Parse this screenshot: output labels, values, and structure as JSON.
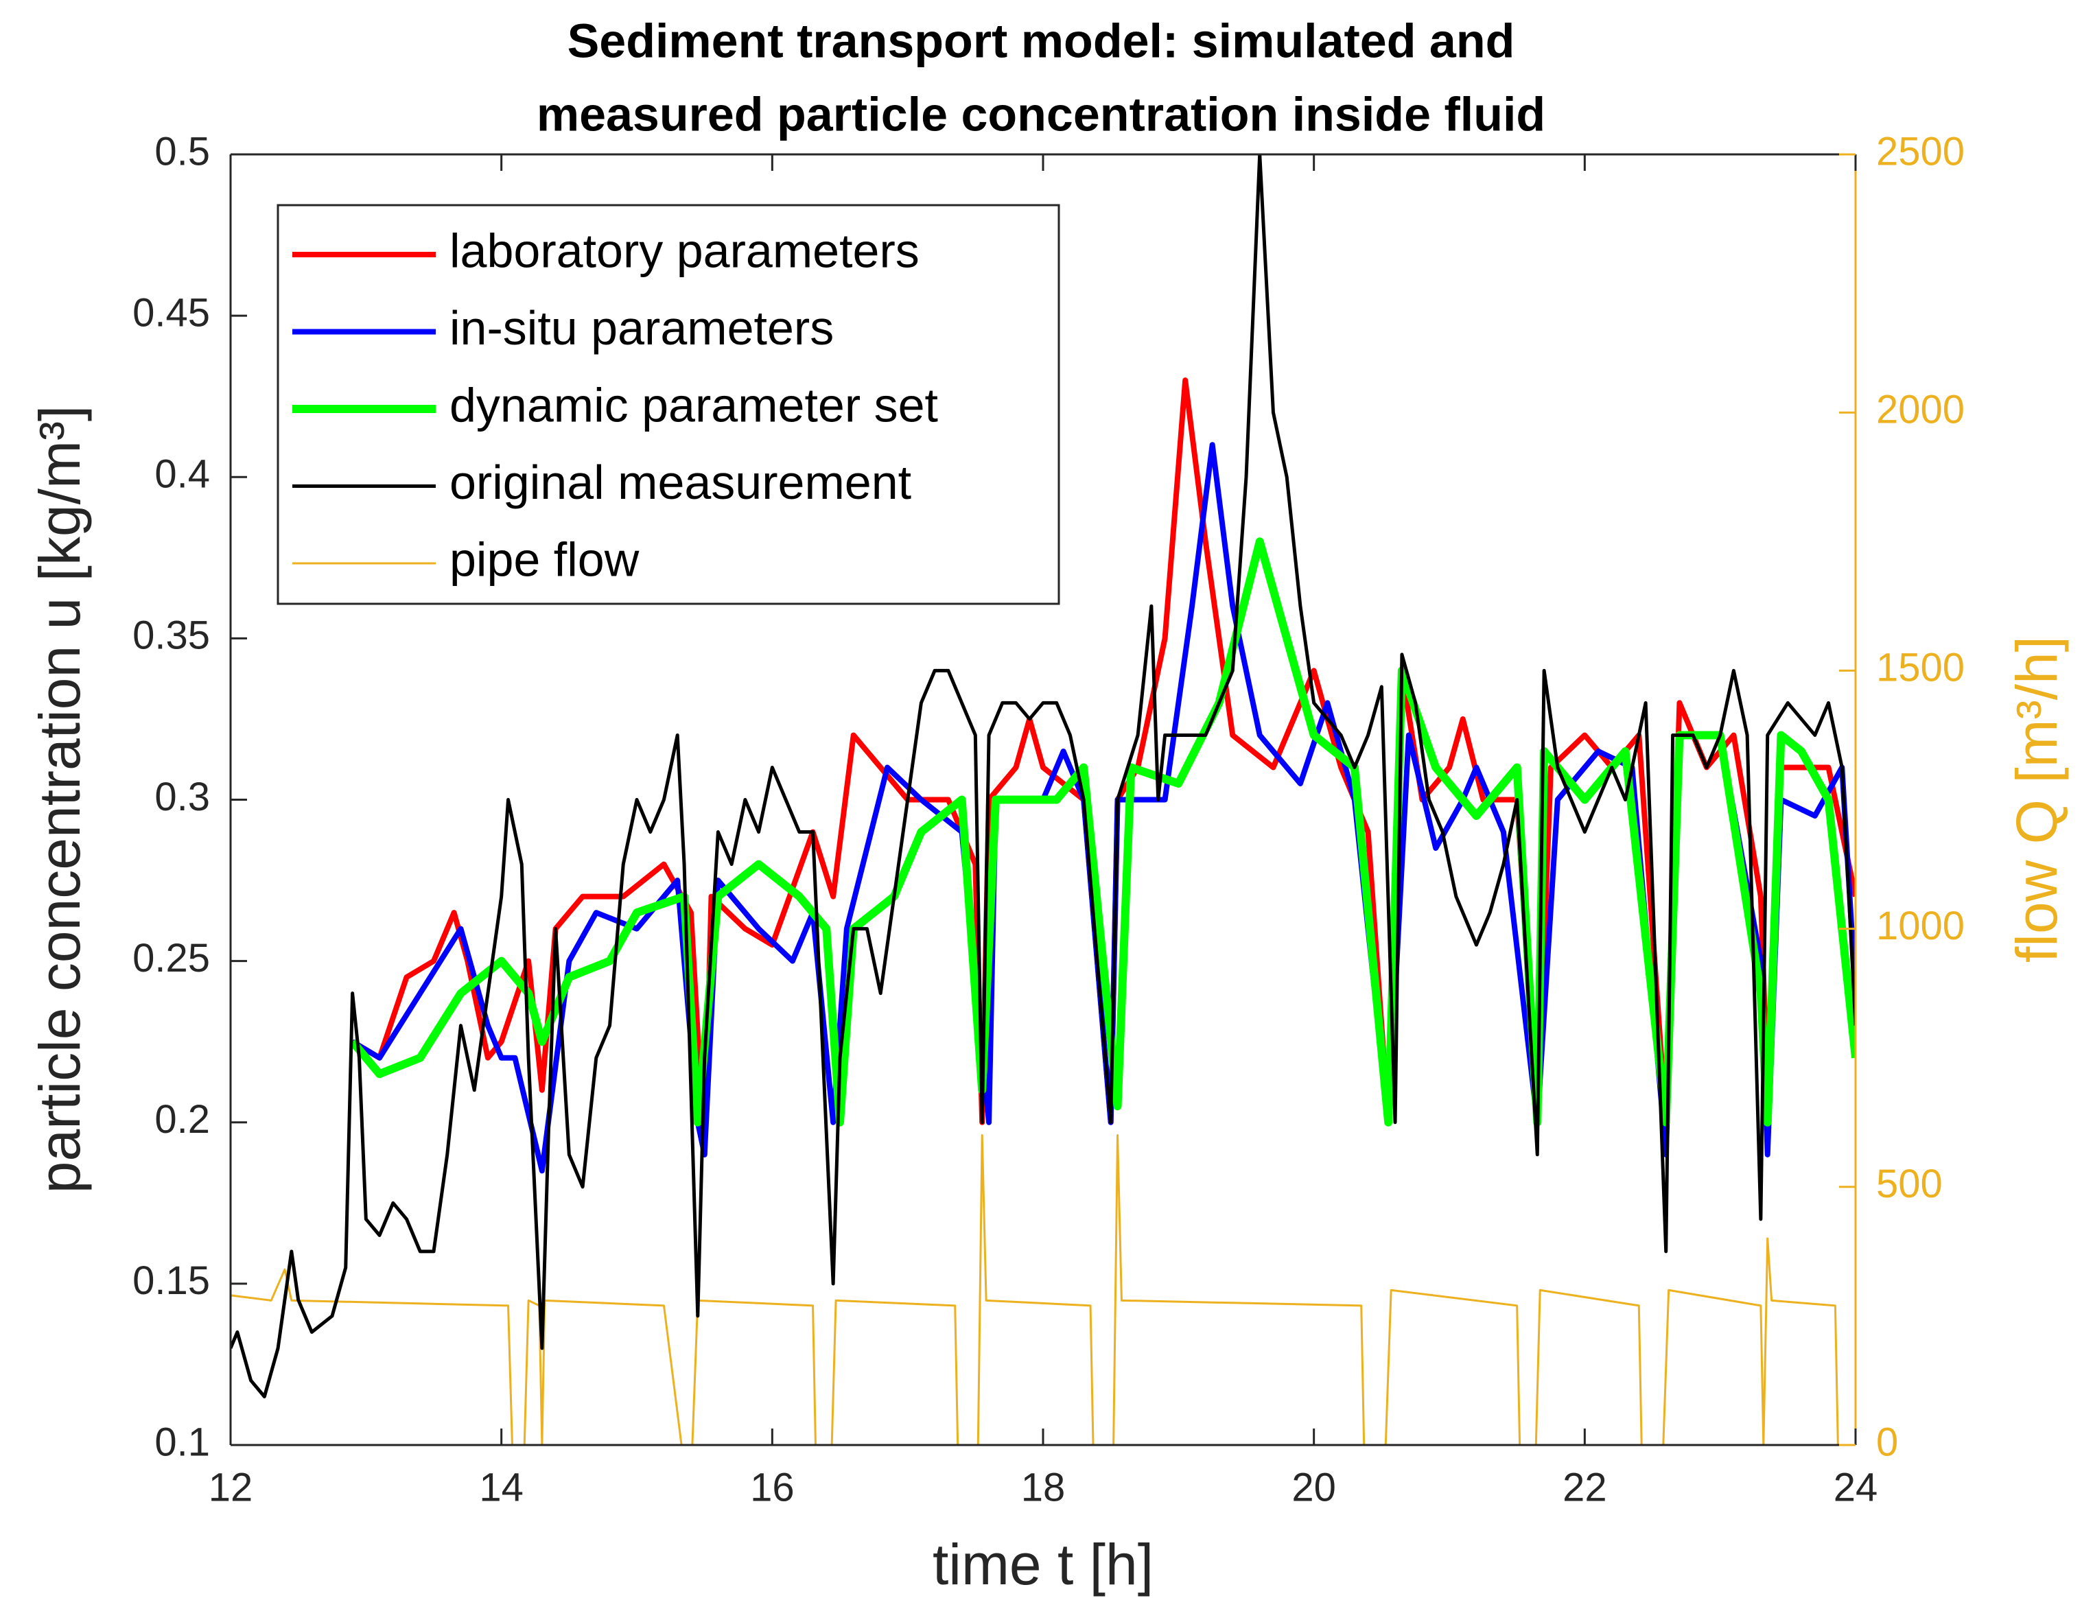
{
  "chart_data": {
    "type": "line",
    "title": [
      "Sediment transport model: simulated and",
      "measured particle concentration inside fluid"
    ],
    "xlabel": "time t [h]",
    "ylabel": "particle concentration u [kg/m³]",
    "y2label": "flow Q [m³/h]",
    "xlim": [
      12,
      24
    ],
    "xticks": [
      12,
      14,
      16,
      18,
      20,
      22,
      24
    ],
    "ylim": [
      0.1,
      0.5
    ],
    "yticks": [
      0.1,
      0.15,
      0.2,
      0.25,
      0.3,
      0.35,
      0.4,
      0.45,
      0.5
    ],
    "y2lim": [
      0,
      2500
    ],
    "y2ticks": [
      0,
      500,
      1000,
      1500,
      2000,
      2500
    ],
    "y2color": "#edb120",
    "legend": "top-left",
    "series": [
      {
        "name": "laboratory parameters",
        "color": "#ff0000",
        "width": 8,
        "x": [
          12.9,
          13.1,
          13.3,
          13.5,
          13.65,
          13.75,
          13.9,
          14.0,
          14.2,
          14.3,
          14.4,
          14.6,
          14.9,
          15.2,
          15.4,
          15.5,
          15.55,
          15.8,
          16.0,
          16.3,
          16.45,
          16.6,
          16.8,
          17.0,
          17.3,
          17.5,
          17.55,
          17.6,
          17.8,
          17.9,
          18.0,
          18.3,
          18.5,
          18.55,
          18.7,
          18.9,
          19.05,
          19.2,
          19.4,
          19.7,
          19.9,
          20.0,
          20.2,
          20.4,
          20.55,
          20.65,
          20.8,
          21.0,
          21.1,
          21.25,
          21.5,
          21.65,
          21.75,
          22.0,
          22.2,
          22.4,
          22.6,
          22.7,
          22.9,
          23.1,
          23.3,
          23.35,
          23.45,
          23.7,
          23.8,
          24.0
        ],
        "values": [
          0.225,
          0.22,
          0.245,
          0.25,
          0.265,
          0.25,
          0.22,
          0.225,
          0.25,
          0.21,
          0.26,
          0.27,
          0.27,
          0.28,
          0.265,
          0.19,
          0.27,
          0.26,
          0.255,
          0.29,
          0.27,
          0.32,
          0.31,
          0.3,
          0.3,
          0.28,
          0.2,
          0.3,
          0.31,
          0.325,
          0.31,
          0.3,
          0.2,
          0.3,
          0.31,
          0.35,
          0.43,
          0.38,
          0.32,
          0.31,
          0.33,
          0.34,
          0.31,
          0.29,
          0.2,
          0.34,
          0.3,
          0.31,
          0.325,
          0.3,
          0.3,
          0.2,
          0.31,
          0.32,
          0.31,
          0.32,
          0.2,
          0.33,
          0.31,
          0.32,
          0.27,
          0.21,
          0.31,
          0.31,
          0.31,
          0.27
        ]
      },
      {
        "name": "in-situ parameters",
        "color": "#0000ff",
        "width": 8,
        "x": [
          12.9,
          13.1,
          13.4,
          13.7,
          13.9,
          14.0,
          14.1,
          14.3,
          14.5,
          14.7,
          15.0,
          15.3,
          15.45,
          15.5,
          15.6,
          15.9,
          16.15,
          16.3,
          16.45,
          16.55,
          16.85,
          17.1,
          17.4,
          17.6,
          17.65,
          18.0,
          18.15,
          18.3,
          18.5,
          18.55,
          18.9,
          19.1,
          19.25,
          19.4,
          19.6,
          19.9,
          20.1,
          20.3,
          20.55,
          20.7,
          20.9,
          21.1,
          21.2,
          21.4,
          21.65,
          21.8,
          22.1,
          22.35,
          22.6,
          22.7,
          23.0,
          23.3,
          23.35,
          23.45,
          23.7,
          23.9,
          24.0
        ],
        "values": [
          0.225,
          0.22,
          0.24,
          0.26,
          0.23,
          0.22,
          0.22,
          0.185,
          0.25,
          0.265,
          0.26,
          0.275,
          0.2,
          0.19,
          0.275,
          0.26,
          0.25,
          0.265,
          0.2,
          0.26,
          0.31,
          0.3,
          0.29,
          0.2,
          0.3,
          0.3,
          0.315,
          0.3,
          0.2,
          0.3,
          0.3,
          0.36,
          0.41,
          0.36,
          0.32,
          0.305,
          0.33,
          0.3,
          0.2,
          0.32,
          0.285,
          0.3,
          0.31,
          0.29,
          0.2,
          0.3,
          0.315,
          0.31,
          0.19,
          0.32,
          0.32,
          0.25,
          0.19,
          0.3,
          0.295,
          0.31,
          0.24
        ]
      },
      {
        "name": "dynamic parameter set",
        "color": "#00ff00",
        "width": 12,
        "x": [
          12.9,
          13.1,
          13.4,
          13.7,
          14.0,
          14.2,
          14.3,
          14.5,
          14.8,
          15.0,
          15.35,
          15.45,
          15.6,
          15.9,
          16.2,
          16.4,
          16.5,
          16.6,
          16.9,
          17.1,
          17.4,
          17.55,
          17.65,
          18.1,
          18.3,
          18.55,
          18.65,
          19.0,
          19.3,
          19.6,
          19.8,
          20.0,
          20.3,
          20.55,
          20.65,
          20.9,
          21.2,
          21.5,
          21.65,
          21.7,
          22.0,
          22.3,
          22.6,
          22.7,
          23.0,
          23.3,
          23.35,
          23.45,
          23.6,
          23.8,
          24.0
        ],
        "values": [
          0.225,
          0.215,
          0.22,
          0.24,
          0.25,
          0.24,
          0.225,
          0.245,
          0.25,
          0.265,
          0.27,
          0.2,
          0.27,
          0.28,
          0.27,
          0.26,
          0.2,
          0.26,
          0.27,
          0.29,
          0.3,
          0.21,
          0.3,
          0.3,
          0.31,
          0.205,
          0.31,
          0.305,
          0.33,
          0.38,
          0.35,
          0.32,
          0.31,
          0.2,
          0.34,
          0.31,
          0.295,
          0.31,
          0.2,
          0.315,
          0.3,
          0.315,
          0.2,
          0.32,
          0.32,
          0.24,
          0.2,
          0.32,
          0.315,
          0.3,
          0.22
        ]
      },
      {
        "name": "original measurement",
        "color": "#000000",
        "width": 5,
        "x": [
          12,
          12.05,
          12.15,
          12.25,
          12.35,
          12.45,
          12.5,
          12.6,
          12.75,
          12.85,
          12.9,
          12.95,
          13.0,
          13.1,
          13.2,
          13.3,
          13.4,
          13.5,
          13.6,
          13.7,
          13.8,
          13.9,
          14.0,
          14.05,
          14.15,
          14.2,
          14.3,
          14.35,
          14.4,
          14.5,
          14.6,
          14.7,
          14.8,
          14.9,
          15.0,
          15.1,
          15.2,
          15.3,
          15.35,
          15.45,
          15.5,
          15.6,
          15.7,
          15.8,
          15.9,
          16.0,
          16.1,
          16.2,
          16.3,
          16.45,
          16.5,
          16.6,
          16.7,
          16.8,
          16.9,
          17.0,
          17.1,
          17.2,
          17.3,
          17.4,
          17.5,
          17.55,
          17.6,
          17.7,
          17.8,
          17.9,
          18.0,
          18.1,
          18.2,
          18.3,
          18.5,
          18.55,
          18.7,
          18.8,
          18.85,
          18.9,
          19.0,
          19.2,
          19.3,
          19.4,
          19.5,
          19.6,
          19.7,
          19.8,
          19.9,
          20.0,
          20.2,
          20.3,
          20.4,
          20.5,
          20.6,
          20.65,
          20.75,
          20.85,
          20.95,
          21.05,
          21.2,
          21.3,
          21.4,
          21.5,
          21.65,
          21.7,
          21.8,
          21.9,
          22.0,
          22.1,
          22.2,
          22.3,
          22.45,
          22.6,
          22.65,
          22.8,
          22.9,
          23.0,
          23.1,
          23.2,
          23.3,
          23.35,
          23.5,
          23.7,
          23.8,
          23.9,
          24.0
        ],
        "values": [
          0.13,
          0.135,
          0.12,
          0.115,
          0.13,
          0.16,
          0.145,
          0.135,
          0.14,
          0.155,
          0.24,
          0.22,
          0.17,
          0.165,
          0.175,
          0.17,
          0.16,
          0.16,
          0.19,
          0.23,
          0.21,
          0.24,
          0.27,
          0.3,
          0.28,
          0.22,
          0.13,
          0.2,
          0.26,
          0.19,
          0.18,
          0.22,
          0.23,
          0.28,
          0.3,
          0.29,
          0.3,
          0.32,
          0.28,
          0.14,
          0.22,
          0.29,
          0.28,
          0.3,
          0.29,
          0.31,
          0.3,
          0.29,
          0.29,
          0.15,
          0.22,
          0.26,
          0.26,
          0.24,
          0.27,
          0.3,
          0.33,
          0.34,
          0.34,
          0.33,
          0.32,
          0.2,
          0.32,
          0.33,
          0.33,
          0.325,
          0.33,
          0.33,
          0.32,
          0.3,
          0.2,
          0.3,
          0.32,
          0.36,
          0.3,
          0.32,
          0.32,
          0.32,
          0.33,
          0.34,
          0.4,
          0.5,
          0.42,
          0.4,
          0.36,
          0.33,
          0.32,
          0.31,
          0.32,
          0.335,
          0.2,
          0.345,
          0.33,
          0.3,
          0.29,
          0.27,
          0.255,
          0.265,
          0.28,
          0.3,
          0.19,
          0.34,
          0.31,
          0.3,
          0.29,
          0.3,
          0.31,
          0.3,
          0.33,
          0.16,
          0.32,
          0.32,
          0.31,
          0.32,
          0.34,
          0.32,
          0.17,
          0.32,
          0.33,
          0.32,
          0.33,
          0.31,
          0.23
        ]
      },
      {
        "name": "pipe flow",
        "color": "#edb120",
        "width": 3,
        "axis": "y2",
        "x": [
          12,
          12.3,
          12.4,
          12.45,
          14.05,
          14.08,
          14.17,
          14.2,
          14.28,
          14.3,
          14.32,
          15.2,
          15.33,
          15.41,
          15.45,
          16.3,
          16.32,
          16.44,
          16.47,
          17.35,
          17.37,
          17.52,
          17.55,
          17.58,
          18.35,
          18.37,
          18.52,
          18.55,
          18.58,
          20.35,
          20.37,
          20.53,
          20.57,
          21.5,
          21.52,
          21.64,
          21.67,
          22.4,
          22.42,
          22.58,
          22.62,
          23.3,
          23.32,
          23.35,
          23.38,
          23.85,
          23.87,
          24
        ],
        "values": [
          290,
          280,
          340,
          280,
          270,
          0,
          0,
          280,
          270,
          0,
          280,
          270,
          0,
          0,
          280,
          270,
          0,
          0,
          280,
          270,
          0,
          0,
          600,
          280,
          270,
          0,
          0,
          600,
          280,
          270,
          0,
          0,
          300,
          270,
          0,
          0,
          300,
          270,
          0,
          0,
          300,
          270,
          0,
          400,
          280,
          270,
          0,
          0
        ]
      }
    ]
  }
}
